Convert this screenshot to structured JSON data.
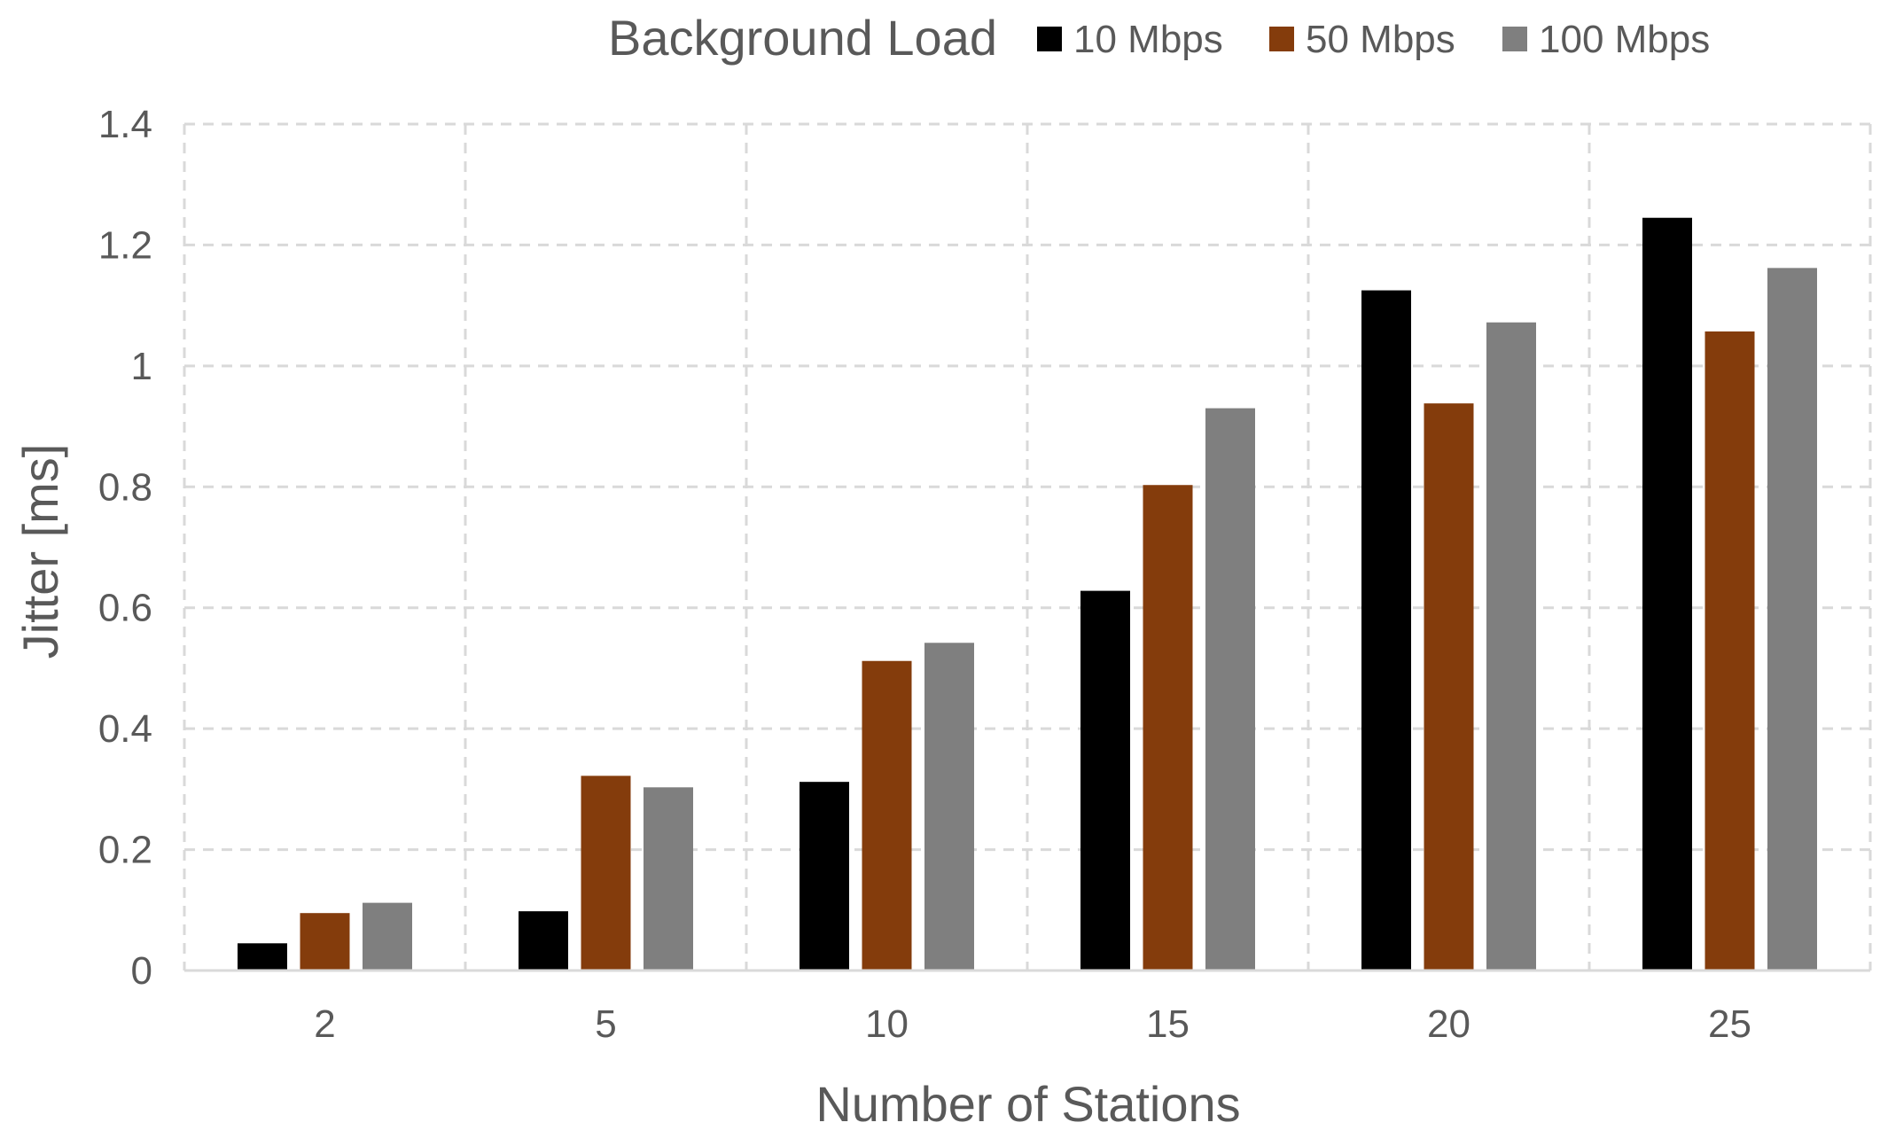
{
  "chart_data": {
    "type": "bar",
    "xlabel": "Number of Stations",
    "ylabel": "Jitter [ms]",
    "categories": [
      "2",
      "5",
      "10",
      "15",
      "20",
      "25"
    ],
    "ylim": [
      0,
      1.4
    ],
    "yticks": [
      0,
      0.2,
      0.4,
      0.6,
      0.8,
      1,
      1.2,
      1.4
    ],
    "ytick_labels": [
      "0",
      "0.2",
      "0.4",
      "0.6",
      "0.8",
      "1",
      "1.2",
      "1.4"
    ],
    "grid": true,
    "legend": {
      "title": "Background Load",
      "placement": "top"
    },
    "series": [
      {
        "name": "10 Mbps",
        "color": "#000000",
        "values": [
          0.045,
          0.098,
          0.312,
          0.628,
          1.125,
          1.245
        ]
      },
      {
        "name": "50 Mbps",
        "color": "#843c0c",
        "values": [
          0.095,
          0.322,
          0.512,
          0.803,
          0.938,
          1.057
        ]
      },
      {
        "name": "100 Mbps",
        "color": "#7f7f7f",
        "values": [
          0.112,
          0.303,
          0.542,
          0.93,
          1.072,
          1.162
        ]
      }
    ]
  }
}
